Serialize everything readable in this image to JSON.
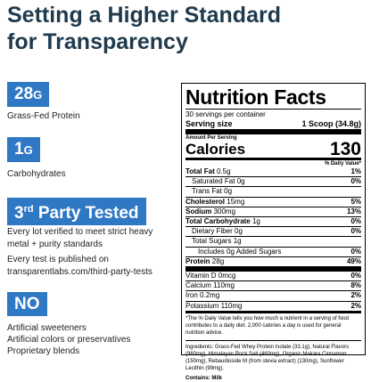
{
  "header": {
    "title": "Setting a Higher Standard for Transparency"
  },
  "badges": [
    {
      "value": "28",
      "unit": "G",
      "caption": "Grass-Fed Protein"
    },
    {
      "value": "1",
      "unit": "G",
      "caption": "Carbohydrates"
    }
  ],
  "third_party": {
    "number": "3",
    "suffix": "rd",
    "text": "Party Tested",
    "lines": [
      "Every lot verified to meet strict heavy metal + purity standards",
      "Every test is published on transparentlabs.com/third-party-tests"
    ]
  },
  "no_section": {
    "label": "NO",
    "items": [
      "Artificial sweeteners",
      "Artificial colors or preservatives",
      "Proprietary blends"
    ]
  },
  "nutrition": {
    "title": "Nutrition Facts",
    "servings": "30 servings per container",
    "serving_size_label": "Serving size",
    "serving_size": "1 Scoop (34.8g)",
    "amount_per_serving": "Amount Per Serving",
    "calories_label": "Calories",
    "calories": "130",
    "dv_header": "% Daily Value*",
    "rows": [
      {
        "label": "Total Fat",
        "amount": "0.5g",
        "dv": "1%",
        "bold": true,
        "indent": 0
      },
      {
        "label": "Saturated Fat",
        "amount": "0g",
        "dv": "0%",
        "bold": false,
        "indent": 1
      },
      {
        "label": "Trans Fat",
        "amount": "0g",
        "bold": false,
        "indent": 1
      },
      {
        "label": "Cholesterol",
        "amount": "15mg",
        "dv": "5%",
        "bold": true,
        "indent": 0
      },
      {
        "label": "Sodium",
        "amount": "300mg",
        "dv": "13%",
        "bold": true,
        "indent": 0
      },
      {
        "label": "Total Carbohydrate",
        "amount": "1g",
        "dv": "0%",
        "bold": true,
        "indent": 0
      },
      {
        "label": "Dietary Fiber",
        "amount": "0g",
        "dv": "0%",
        "bold": false,
        "indent": 1
      },
      {
        "label": "Total Sugars",
        "amount": "1g",
        "bold": false,
        "indent": 1
      },
      {
        "label": "Includes",
        "amount": "0g Added Sugars",
        "dv": "0%",
        "bold": false,
        "indent": 2
      },
      {
        "label": "Protein",
        "amount": "28g",
        "dv": "49%",
        "bold": true,
        "indent": 0
      }
    ],
    "vitamins": [
      {
        "label": "Vitamin D",
        "amount": "0mcg",
        "dv": "0%"
      },
      {
        "label": "Calcium",
        "amount": "110mg",
        "dv": "8%"
      },
      {
        "label": "Iron",
        "amount": "0.2mg",
        "dv": "2%"
      },
      {
        "label": "Potassium",
        "amount": "110mg",
        "dv": "2%"
      }
    ],
    "footnote": "*The % Daily Value tells you how much a nutrient in a serving of food contributes to a daily diet. 2,000 calories a day is used for general nutrition advice.",
    "ingredients": "Ingredients: Grass-Fed Whey Protein Isolate (33.1g), Natural Flavors (960mg), Himalayan Rock Salt (460mg), Organic Makara Cinnamon (150mg), Rebaudioside M (from stevia extract) (130mg), Sunflower Lecithin (99mg).",
    "contains": "Contains: Milk"
  }
}
